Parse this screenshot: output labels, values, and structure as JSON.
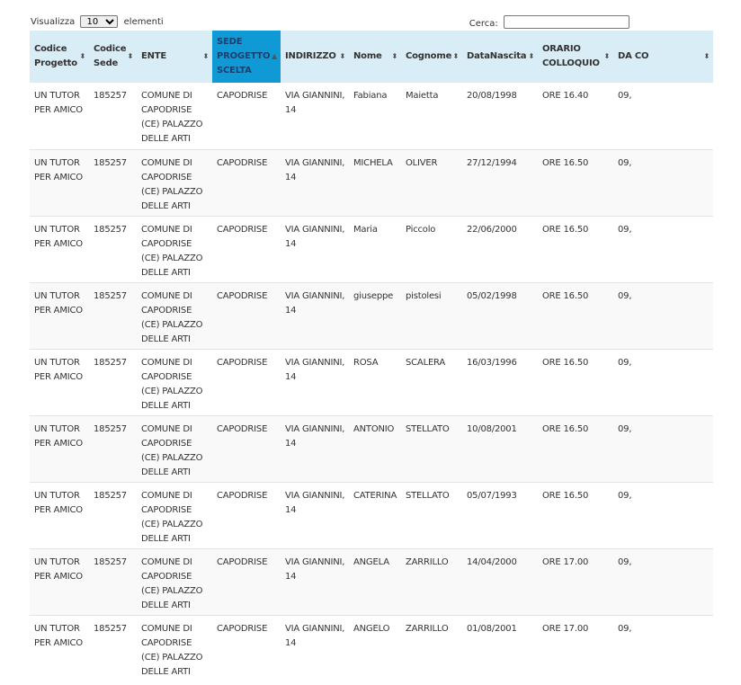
{
  "controls": {
    "show_label": "Visualizza",
    "show_value": "10",
    "show_suffix": "elementi",
    "search_label": "Cerca:",
    "search_value": ""
  },
  "columns": [
    {
      "label": "Codice Progetto",
      "sort": "both"
    },
    {
      "label": "Codice Sede",
      "sort": "both"
    },
    {
      "label": "ENTE",
      "sort": "both"
    },
    {
      "label": "SEDE PROGETTO SCELTA",
      "sort": "asc"
    },
    {
      "label": "INDIRIZZO",
      "sort": "both"
    },
    {
      "label": "Nome",
      "sort": "both"
    },
    {
      "label": "Cognome",
      "sort": "both"
    },
    {
      "label": "DataNascita",
      "sort": "both"
    },
    {
      "label": "ORARIO COLLOQUIO",
      "sort": "both"
    },
    {
      "label": "DA CO",
      "sort": "both"
    }
  ],
  "rows": [
    [
      "UN TUTOR PER AMICO",
      "185257",
      "COMUNE DI CAPODRISE (CE) PALAZZO DELLE ARTI",
      "CAPODRISE",
      "VIA GIANNINI, 14",
      "Fabiana",
      "Maietta",
      "20/08/1998",
      "ORE 16.40",
      "09,"
    ],
    [
      "UN TUTOR PER AMICO",
      "185257",
      "COMUNE DI CAPODRISE (CE) PALAZZO DELLE ARTI",
      "CAPODRISE",
      "VIA GIANNINI, 14",
      "MICHELA",
      "OLIVER",
      "27/12/1994",
      "ORE 16.50",
      "09,"
    ],
    [
      "UN TUTOR PER AMICO",
      "185257",
      "COMUNE DI CAPODRISE (CE) PALAZZO DELLE ARTI",
      "CAPODRISE",
      "VIA GIANNINI, 14",
      "Maria",
      "Piccolo",
      "22/06/2000",
      "ORE 16.50",
      "09,"
    ],
    [
      "UN TUTOR PER AMICO",
      "185257",
      "COMUNE DI CAPODRISE (CE) PALAZZO DELLE ARTI",
      "CAPODRISE",
      "VIA GIANNINI, 14",
      "giuseppe",
      "pistolesi",
      "05/02/1998",
      "ORE 16.50",
      "09,"
    ],
    [
      "UN TUTOR PER AMICO",
      "185257",
      "COMUNE DI CAPODRISE (CE) PALAZZO DELLE ARTI",
      "CAPODRISE",
      "VIA GIANNINI, 14",
      "ROSA",
      "SCALERA",
      "16/03/1996",
      "ORE 16.50",
      "09,"
    ],
    [
      "UN TUTOR PER AMICO",
      "185257",
      "COMUNE DI CAPODRISE (CE) PALAZZO DELLE ARTI",
      "CAPODRISE",
      "VIA GIANNINI, 14",
      "ANTONIO",
      "STELLATO",
      "10/08/2001",
      "ORE 16.50",
      "09,"
    ],
    [
      "UN TUTOR PER AMICO",
      "185257",
      "COMUNE DI CAPODRISE (CE) PALAZZO DELLE ARTI",
      "CAPODRISE",
      "VIA GIANNINI, 14",
      "CATERINA",
      "STELLATO",
      "05/07/1993",
      "ORE 16.50",
      "09,"
    ],
    [
      "UN TUTOR PER AMICO",
      "185257",
      "COMUNE DI CAPODRISE (CE) PALAZZO DELLE ARTI",
      "CAPODRISE",
      "VIA GIANNINI, 14",
      "ANGELA",
      "ZARRILLO",
      "14/04/2000",
      "ORE 17.00",
      "09,"
    ],
    [
      "UN TUTOR PER AMICO",
      "185257",
      "COMUNE DI CAPODRISE (CE) PALAZZO DELLE ARTI",
      "CAPODRISE",
      "VIA GIANNINI, 14",
      "ANGELO",
      "ZARRILLO",
      "01/08/2001",
      "ORE 17.00",
      "09,"
    ]
  ],
  "colors": {
    "header_bg": "#d9edf7",
    "active_header_bg": "#0f9ad6",
    "stripe": "#f9f9f9"
  }
}
